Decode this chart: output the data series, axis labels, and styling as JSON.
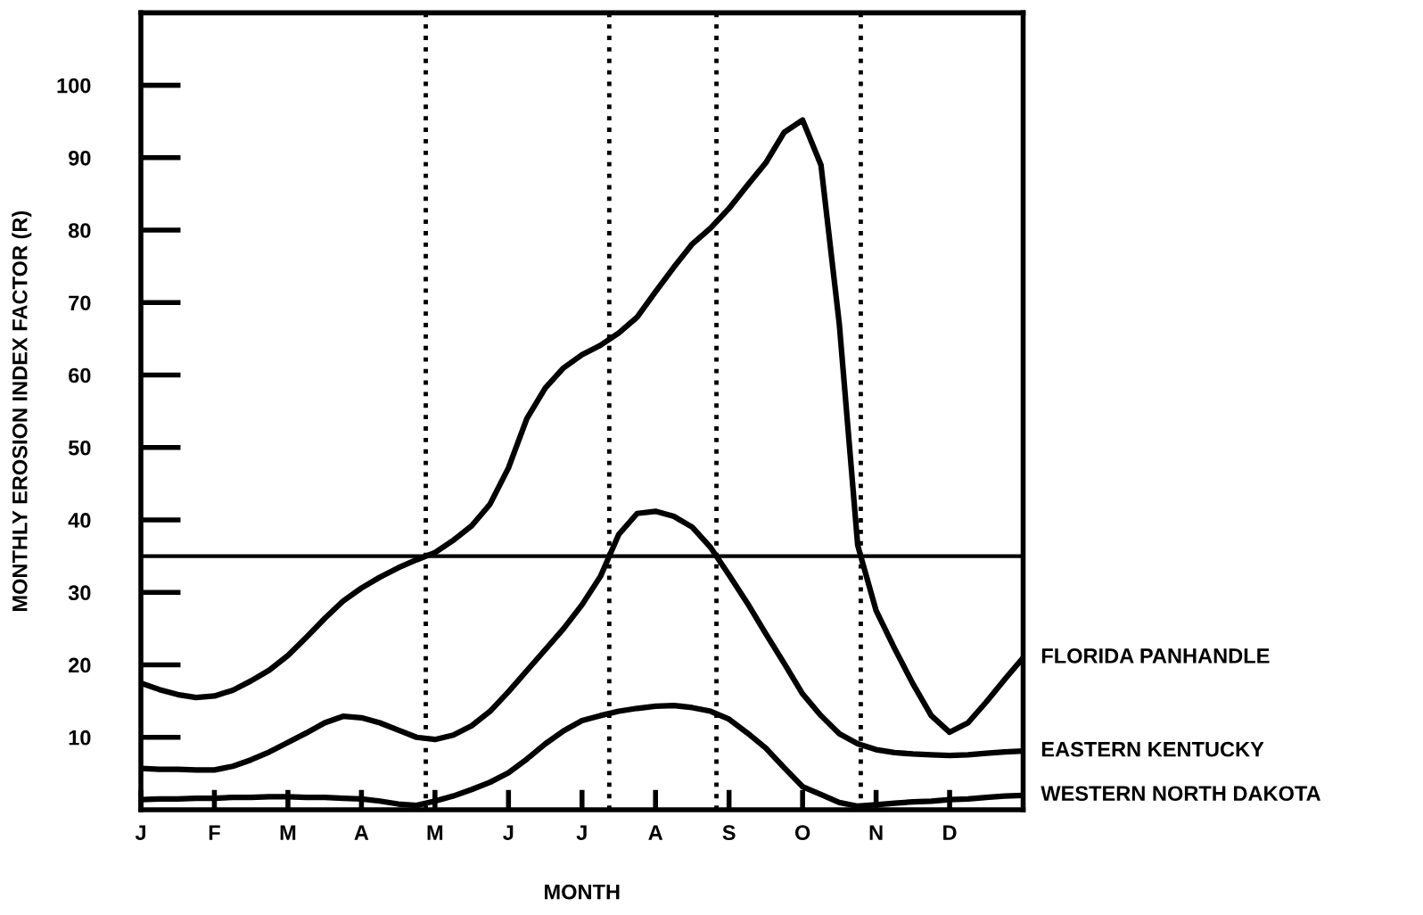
{
  "chart_data": {
    "type": "line",
    "xlabel": "MONTH",
    "ylabel": "MONTHLY EROSION INDEX FACTOR (R)",
    "categories": [
      "J",
      null,
      null,
      null,
      "F",
      null,
      null,
      null,
      "M",
      null,
      null,
      null,
      "A",
      null,
      null,
      null,
      "M",
      null,
      null,
      null,
      "J",
      null,
      null,
      null,
      "J",
      null,
      null,
      null,
      "A",
      null,
      null,
      null,
      "S",
      null,
      null,
      null,
      "O",
      null,
      null,
      null,
      "N",
      null,
      null,
      null,
      "D",
      null,
      null,
      null,
      null
    ],
    "ylim": [
      0,
      110
    ],
    "yticks": [
      10,
      20,
      30,
      40,
      50,
      60,
      70,
      80,
      90,
      100
    ],
    "grid": false,
    "legend": false,
    "marker": "none",
    "line_style": "solid",
    "series": [
      {
        "name": "FLORIDA PANHANDLE",
        "color": "#000000",
        "values": [
          17.5,
          16.6,
          15.9,
          15.5,
          15.7,
          16.5,
          17.8,
          19.3,
          21.3,
          23.8,
          26.4,
          28.8,
          30.6,
          32.1,
          33.4,
          34.5,
          35.5,
          37.2,
          39.2,
          42.2,
          47.2,
          54,
          58.2,
          61,
          62.8,
          64.1,
          65.8,
          68,
          71.5,
          74.9,
          78.1,
          80.3,
          83,
          86.2,
          89.3,
          93.5,
          95.2,
          89,
          67,
          36.5,
          27.5,
          22.3,
          17.4,
          13,
          10.7,
          12,
          14.9,
          18,
          21
        ]
      },
      {
        "name": "EASTERN KENTUCKY",
        "color": "#000000",
        "values": [
          5.7,
          5.6,
          5.6,
          5.5,
          5.5,
          6,
          6.9,
          8,
          9.3,
          10.6,
          12,
          12.9,
          12.7,
          12,
          11,
          10,
          9.7,
          10.3,
          11.6,
          13.6,
          16.3,
          19.2,
          22.1,
          25,
          28.3,
          32.2,
          38,
          40.9,
          41.2,
          40.5,
          39,
          36.2,
          32.4,
          28.5,
          24.3,
          20.2,
          16,
          13,
          10.5,
          9.1,
          8.3,
          7.9,
          7.7,
          7.6,
          7.5,
          7.6,
          7.8,
          8,
          8.1
        ]
      },
      {
        "name": "WESTERN NORTH DAKOTA",
        "color": "#000000",
        "values": [
          1.4,
          1.5,
          1.5,
          1.6,
          1.6,
          1.7,
          1.7,
          1.8,
          1.8,
          1.7,
          1.7,
          1.6,
          1.5,
          1.2,
          0.8,
          0.6,
          1.2,
          1.9,
          2.8,
          3.8,
          5.1,
          7,
          9.1,
          10.9,
          12.3,
          13,
          13.6,
          14,
          14.3,
          14.4,
          14.1,
          13.6,
          12.5,
          10.6,
          8.5,
          5.8,
          3.2,
          2.1,
          1.0,
          0.5,
          0.7,
          0.9,
          1.1,
          1.2,
          1.4,
          1.5,
          1.7,
          1.9,
          2.0
        ]
      }
    ],
    "ref_lines": [
      {
        "axis": "y",
        "value": 35,
        "color": "#000000",
        "line_style": "solid"
      }
    ]
  }
}
